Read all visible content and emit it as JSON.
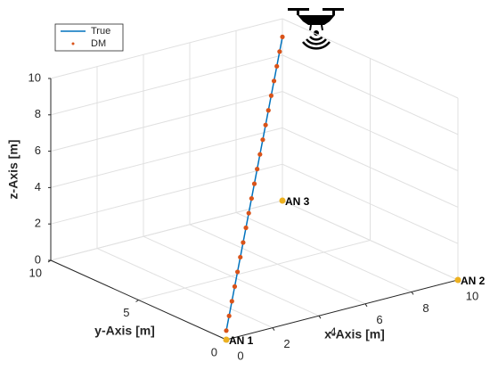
{
  "chart_data": {
    "type": "line3d",
    "x_label": "x-Axis [m]",
    "y_label": "y-Axis [m]",
    "z_label": "z-Axis [m]",
    "xlim": [
      0,
      10
    ],
    "ylim": [
      0,
      10
    ],
    "zlim": [
      0,
      10
    ],
    "xticks": [
      0,
      2,
      4,
      6,
      8,
      10
    ],
    "yticks": [
      0,
      5,
      10
    ],
    "zticks": [
      0,
      2,
      4,
      6,
      8,
      10
    ],
    "grid": true,
    "legend": "northwest",
    "series": [
      {
        "name": "True",
        "color": "#0072bd",
        "style": "line",
        "x": [
          0,
          0.5,
          1,
          1.5,
          2,
          2.5,
          3,
          3.5,
          4,
          4.5,
          5,
          5.5,
          6,
          6.5,
          7,
          7.5,
          8,
          8.5,
          9,
          9.5,
          10
        ],
        "y": [
          0,
          0.5,
          1,
          1.5,
          2,
          2.5,
          3,
          3.5,
          4,
          4.5,
          5,
          5.5,
          6,
          6.5,
          7,
          7.5,
          8,
          8.5,
          9,
          9.5,
          10
        ],
        "z": [
          0.5,
          0.925,
          1.35,
          1.775,
          2.2,
          2.625,
          3.05,
          3.475,
          3.9,
          4.325,
          4.75,
          5.175,
          5.6,
          6.025,
          6.45,
          6.875,
          7.3,
          7.725,
          8.15,
          8.575,
          9
        ]
      },
      {
        "name": "DM",
        "color": "#d95319",
        "style": "dots",
        "x": [
          0,
          0.5,
          1,
          1.5,
          2,
          2.5,
          3,
          3.5,
          4,
          4.5,
          5,
          5.5,
          6,
          6.5,
          7,
          7.5,
          8,
          8.5,
          9,
          9.5,
          10
        ],
        "y": [
          0,
          0.5,
          1,
          1.5,
          2,
          2.5,
          3,
          3.5,
          4,
          4.5,
          5,
          5.5,
          6,
          6.5,
          7,
          7.5,
          8,
          8.5,
          9,
          9.5,
          10
        ],
        "z": [
          0.5,
          0.925,
          1.35,
          1.775,
          2.2,
          2.625,
          3.05,
          3.475,
          3.9,
          4.325,
          4.75,
          5.175,
          5.6,
          6.025,
          6.45,
          6.875,
          7.3,
          7.725,
          8.15,
          8.575,
          9
        ]
      }
    ],
    "anchors": {
      "color": "#edb120",
      "labels": [
        "AN 1",
        "AN 2",
        "AN 3"
      ],
      "x": [
        0,
        10,
        10
      ],
      "y": [
        0,
        0,
        10
      ],
      "z": [
        0,
        0,
        0
      ]
    }
  }
}
